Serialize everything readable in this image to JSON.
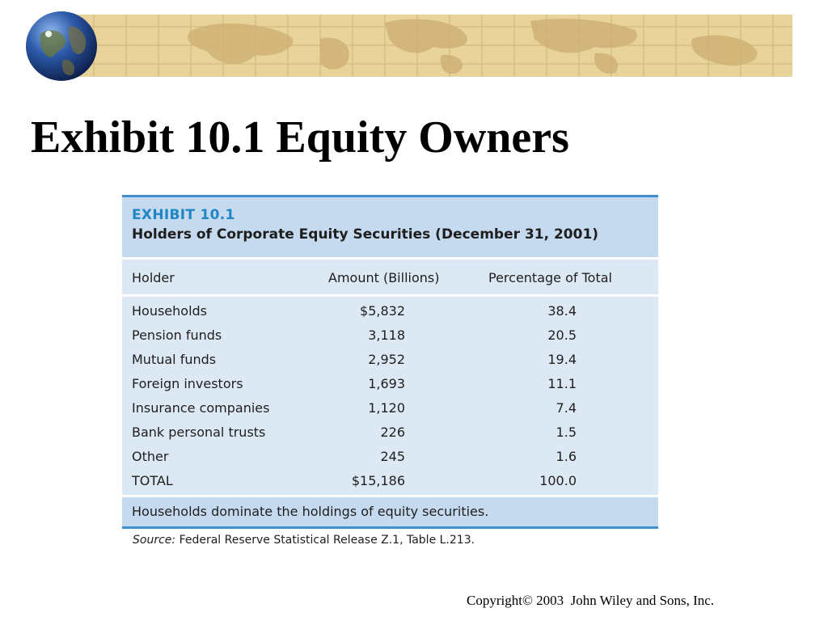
{
  "slide": {
    "title": "Exhibit 10.1 Equity Owners",
    "copyright": "Copyright© 2003  John Wiley and Sons, Inc."
  },
  "exhibit": {
    "label": "EXHIBIT 10.1",
    "caption": "Holders of Corporate Equity Securities (December 31, 2001)",
    "columns": [
      "Holder",
      "Amount (Billions)",
      "Percentage of Total"
    ],
    "rows": [
      {
        "holder": "Households",
        "amount": "$5,832",
        "pct": "38.4"
      },
      {
        "holder": "Pension funds",
        "amount": "3,118",
        "pct": "20.5"
      },
      {
        "holder": "Mutual funds",
        "amount": "2,952",
        "pct": "19.4"
      },
      {
        "holder": "Foreign investors",
        "amount": "1,693",
        "pct": "11.1"
      },
      {
        "holder": "Insurance companies",
        "amount": "1,120",
        "pct": "7.4"
      },
      {
        "holder": "Bank personal trusts",
        "amount": "226",
        "pct": "1.5"
      },
      {
        "holder": "Other",
        "amount": "245",
        "pct": "1.6"
      },
      {
        "holder": "TOTAL",
        "amount": "$15,186",
        "pct": "100.0"
      }
    ],
    "note": "Households dominate the holdings of equity securities.",
    "source_label": "Source:",
    "source_text": "Federal Reserve Statistical Release Z.1, Table L.213."
  },
  "colors": {
    "banner": "#e8d39a",
    "accent_blue": "#3e8fcc",
    "header_fill": "#c6daef",
    "body_fill": "#dde8f5"
  }
}
